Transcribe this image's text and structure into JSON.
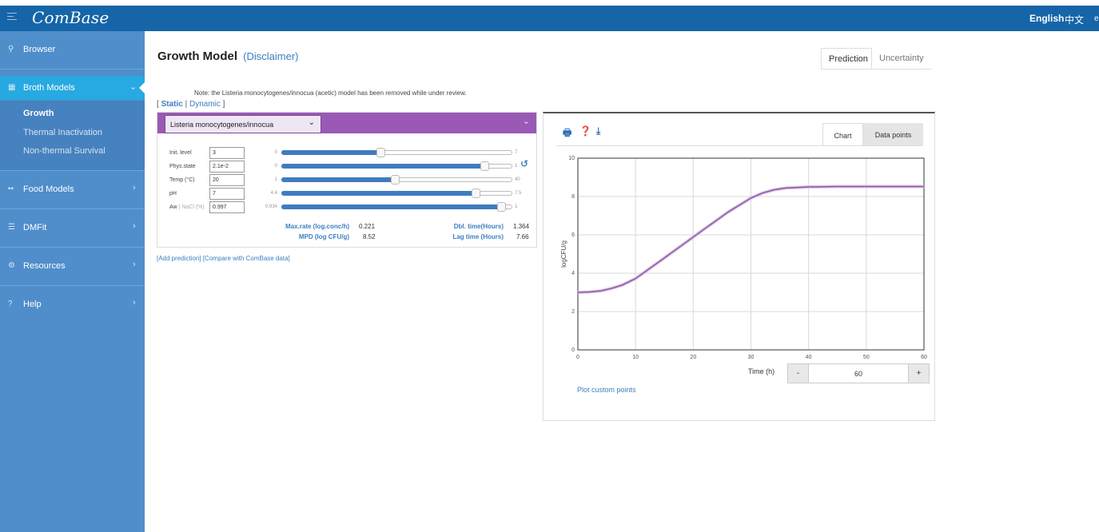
{
  "app": {
    "logo": "ComBase",
    "languages": [
      "English",
      "中文",
      "e"
    ]
  },
  "sidebar": {
    "items": [
      {
        "icon": "search-icon",
        "glyph": "⚲",
        "label": "Browser",
        "chevron": ""
      },
      {
        "icon": "grid-icon",
        "glyph": "▦",
        "label": "Broth Models",
        "chevron": "⌄",
        "active": true
      },
      {
        "icon": "blocks-icon",
        "glyph": "▪▪",
        "label": "Food Models",
        "chevron": "›"
      },
      {
        "icon": "list-icon",
        "glyph": "☰",
        "label": "DMFit",
        "chevron": "›"
      },
      {
        "icon": "gears-icon",
        "glyph": "⚙",
        "label": "Resources",
        "chevron": "›"
      },
      {
        "icon": "question-icon",
        "glyph": "?",
        "label": "Help",
        "chevron": "›"
      }
    ],
    "subitems": [
      "Growth",
      "Thermal Inactivation",
      "Non-thermal Survival"
    ],
    "current_subitem": "Growth"
  },
  "page": {
    "title": "Growth Model",
    "disclaimer": "(Disclaimer)",
    "tabs": [
      "Prediction",
      "Uncertainty"
    ],
    "selected_tab": "Prediction",
    "note": "Note: the Listeria monocytogenes/innocua (acetic) model has been removed while under review.",
    "mode": {
      "open": "[",
      "static": "Static",
      "sep": "|",
      "dynamic": "Dynamic",
      "close": "]"
    }
  },
  "model": {
    "organism": "Listeria monocytogenes/innocua",
    "params": [
      {
        "label": "Init. level",
        "value": "3",
        "min": "0",
        "max": "7",
        "fraction": 0.43
      },
      {
        "label": "Phys.state",
        "value": "2.1e-2",
        "min": "0",
        "max": "1",
        "fraction": 0.88
      },
      {
        "label": "Temp (°C)",
        "value": "20",
        "min": "1",
        "max": "40",
        "fraction": 0.49
      },
      {
        "label": "pH",
        "value": "7",
        "min": "4.4",
        "max": "7.5",
        "fraction": 0.84
      },
      {
        "label": "Aw",
        "label_sep": "|",
        "label_alt": "NaCl (%)",
        "value": "0.997",
        "min": "0.934",
        "max": "1",
        "fraction": 0.95
      }
    ],
    "results": {
      "max_rate_label": "Max.rate (log.conc/h)",
      "max_rate": "0.221",
      "dbl_time_label": "Dbl. time(Hours)",
      "dbl_time": "1.364",
      "mpd_label": "MPD (log CFU/g)",
      "mpd": "8.52",
      "lag_label": "Lag time (Hours)",
      "lag": "7.66"
    },
    "links": {
      "add": "[Add prediction]",
      "compare": "[Compare with ComBase data]"
    }
  },
  "chartpanel": {
    "tools": [
      "print-icon",
      "help-icon",
      "download-icon"
    ],
    "tabs": [
      "Chart",
      "Data points"
    ],
    "selected_tab": "Chart",
    "time_label": "Time (h)",
    "stepper": {
      "minus": "-",
      "value": "60",
      "plus": "+"
    },
    "plot_custom": "Plot custom points"
  },
  "chart_data": {
    "type": "line",
    "title": "",
    "xlabel": "",
    "ylabel": "logCFU/g",
    "xlim": [
      0,
      60
    ],
    "ylim": [
      0,
      10
    ],
    "xticks": [
      0,
      10,
      20,
      30,
      40,
      50,
      60
    ],
    "yticks": [
      0,
      2,
      4,
      6,
      8,
      10
    ],
    "grid": true,
    "legend": "none",
    "series": [
      {
        "color": "#8e5aa8",
        "x": [
          0,
          2,
          4,
          6,
          7.66,
          10,
          14,
          18,
          22,
          26,
          30,
          32,
          34,
          36,
          40,
          45,
          50,
          55,
          60
        ],
        "y": [
          3.0,
          3.02,
          3.08,
          3.22,
          3.38,
          3.72,
          4.58,
          5.45,
          6.32,
          7.18,
          7.92,
          8.18,
          8.35,
          8.44,
          8.5,
          8.52,
          8.52,
          8.52,
          8.52
        ]
      }
    ]
  }
}
